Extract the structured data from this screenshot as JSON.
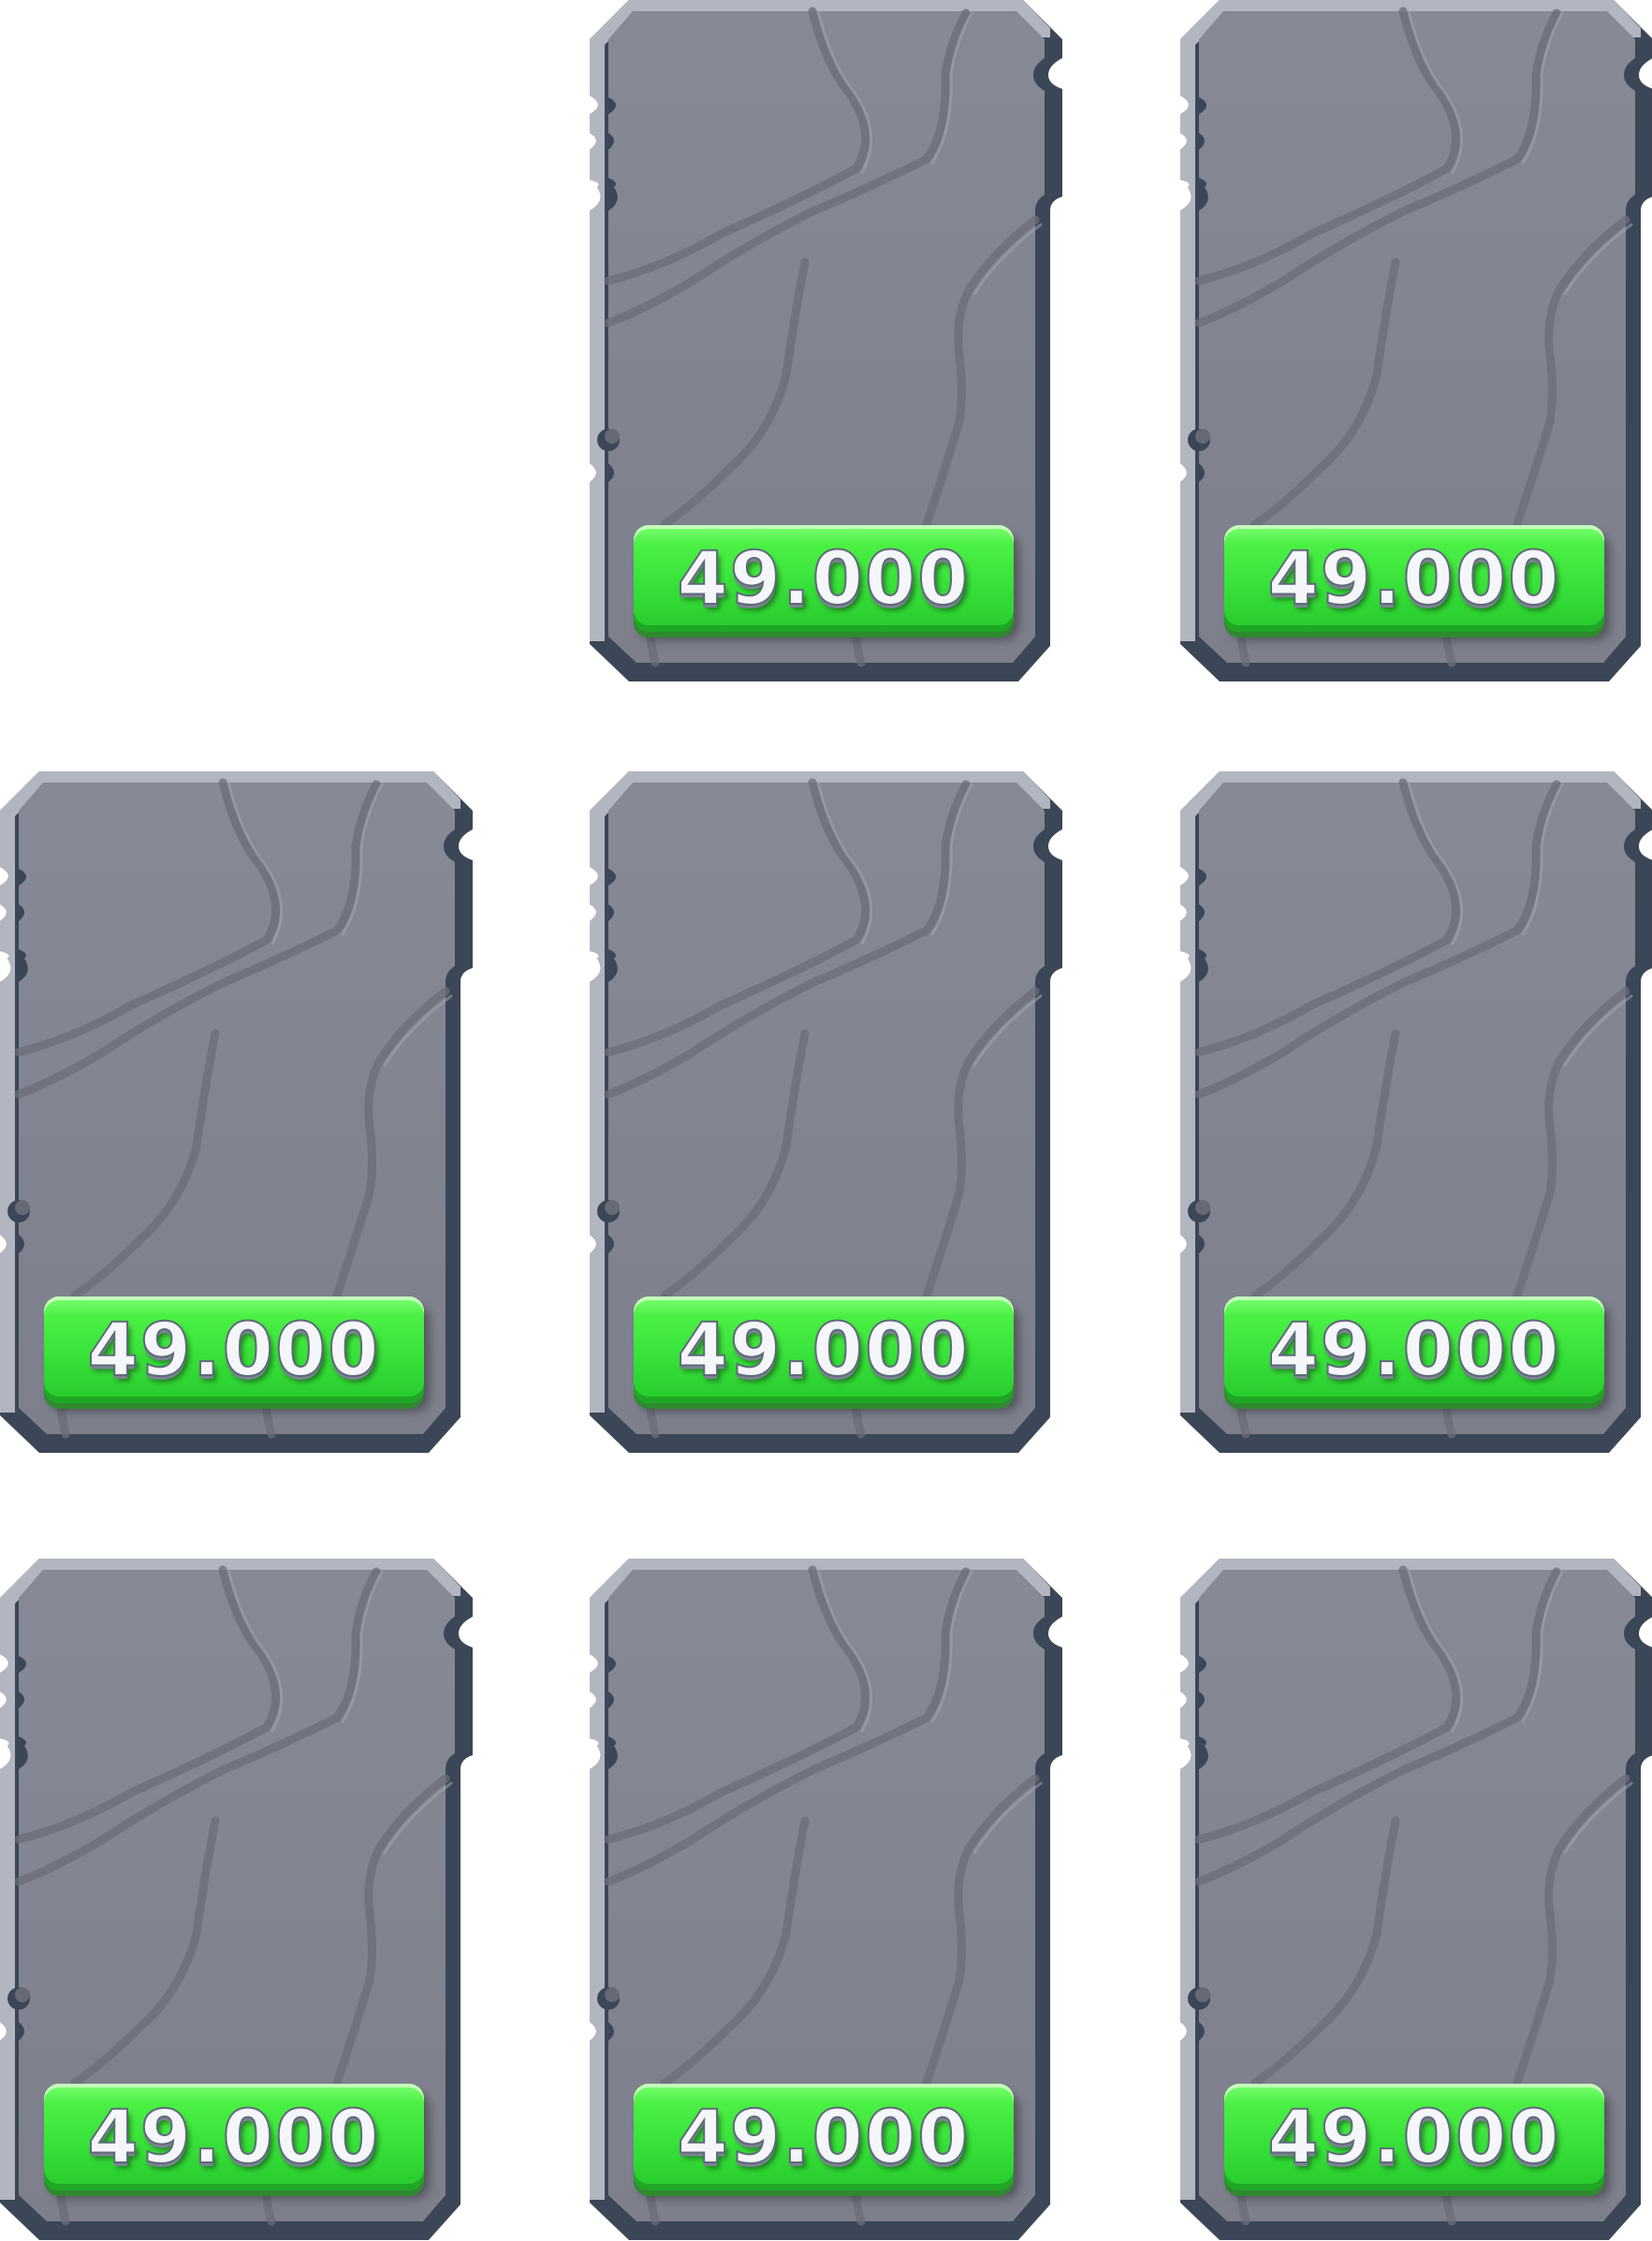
{
  "shop": {
    "cards": [
      {
        "price": "49.000"
      },
      {
        "price": "49.000"
      },
      {
        "price": "49.000"
      },
      {
        "price": "49.000"
      },
      {
        "price": "49.000"
      },
      {
        "price": "49.000"
      },
      {
        "price": "49.000"
      },
      {
        "price": "49.000"
      }
    ]
  },
  "colors": {
    "slab_face": "#80838f",
    "slab_edge_dark": "#3b4656",
    "slab_edge_light": "#aeb2bd",
    "button_green": "#38e23a",
    "price_text": "#f4f6fa"
  }
}
